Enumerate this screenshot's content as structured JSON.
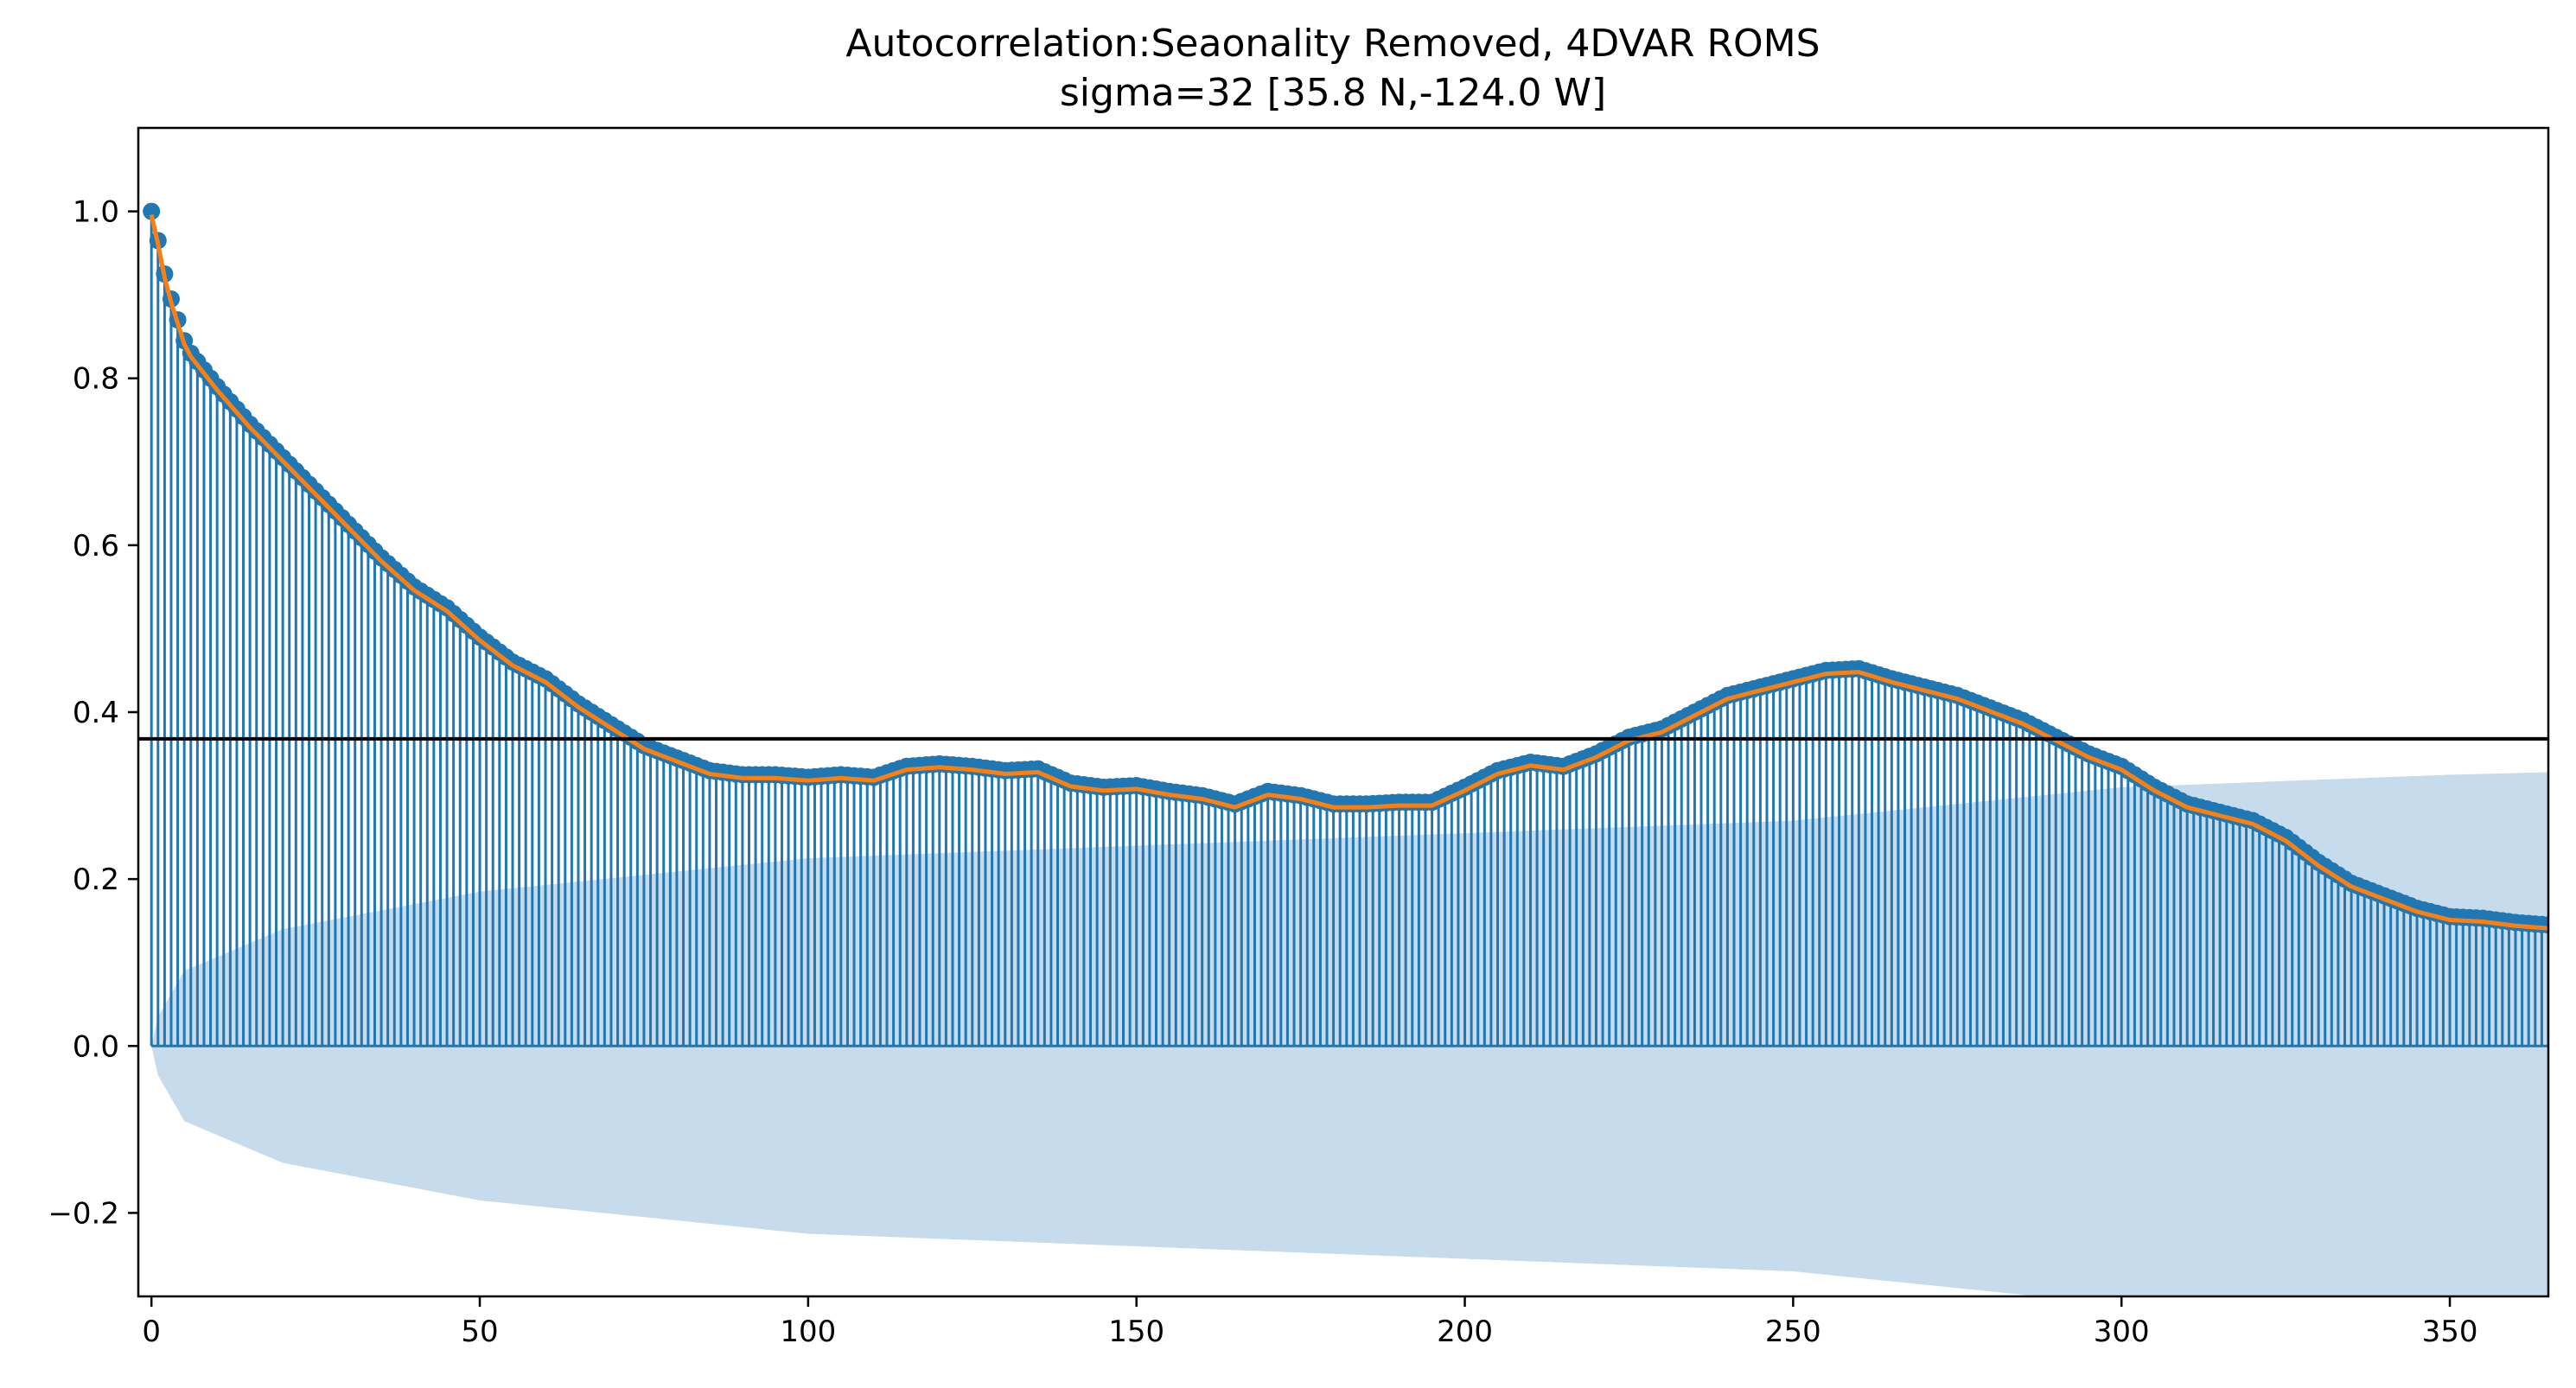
{
  "chart_data": {
    "type": "bar",
    "subtype": "acf-stem",
    "title": "Autocorrelation:Seaonality Removed, 4DVAR ROMS",
    "subtitle": "sigma=32 [35.8 N,-124.0 W]",
    "xlabel": "",
    "ylabel": "",
    "xlim": [
      -2,
      365
    ],
    "ylim": [
      -0.3,
      1.1
    ],
    "x_ticks": [
      0,
      50,
      100,
      150,
      200,
      250,
      300,
      350
    ],
    "x_tick_labels": [
      "0",
      "50",
      "100",
      "150",
      "200",
      "250",
      "300",
      "350"
    ],
    "y_ticks": [
      -0.2,
      0.0,
      0.2,
      0.4,
      0.6,
      0.8,
      1.0
    ],
    "y_tick_labels": [
      "−0.2",
      "0.0",
      "0.2",
      "0.4",
      "0.6",
      "0.8",
      "1.0"
    ],
    "grid": false,
    "legend": "none",
    "threshold_line": 0.368,
    "lags": {
      "start": 0,
      "end": 365,
      "step": 1
    },
    "acf_anchors": {
      "x": [
        0,
        1,
        2,
        3,
        4,
        5,
        6,
        8,
        10,
        15,
        20,
        25,
        30,
        35,
        40,
        45,
        50,
        55,
        60,
        65,
        70,
        75,
        80,
        85,
        90,
        95,
        100,
        105,
        110,
        115,
        120,
        125,
        130,
        135,
        140,
        145,
        150,
        155,
        160,
        165,
        170,
        175,
        180,
        185,
        190,
        195,
        200,
        205,
        210,
        215,
        220,
        225,
        230,
        235,
        240,
        245,
        250,
        255,
        260,
        265,
        270,
        275,
        280,
        285,
        290,
        295,
        300,
        305,
        310,
        315,
        320,
        325,
        330,
        335,
        340,
        345,
        350,
        355,
        360,
        365
      ],
      "y": [
        1.0,
        0.965,
        0.925,
        0.895,
        0.87,
        0.845,
        0.83,
        0.81,
        0.79,
        0.745,
        0.705,
        0.665,
        0.625,
        0.585,
        0.55,
        0.525,
        0.49,
        0.46,
        0.44,
        0.41,
        0.385,
        0.36,
        0.345,
        0.33,
        0.325,
        0.325,
        0.322,
        0.325,
        0.322,
        0.335,
        0.338,
        0.335,
        0.33,
        0.332,
        0.315,
        0.31,
        0.312,
        0.305,
        0.3,
        0.29,
        0.305,
        0.3,
        0.29,
        0.29,
        0.292,
        0.292,
        0.31,
        0.33,
        0.34,
        0.335,
        0.35,
        0.37,
        0.38,
        0.4,
        0.42,
        0.43,
        0.44,
        0.45,
        0.452,
        0.44,
        0.43,
        0.42,
        0.405,
        0.39,
        0.37,
        0.35,
        0.335,
        0.31,
        0.29,
        0.28,
        0.27,
        0.25,
        0.22,
        0.195,
        0.18,
        0.165,
        0.155,
        0.153,
        0.148,
        0.145
      ]
    },
    "confidence_upper_anchors": {
      "x": [
        0,
        1,
        5,
        20,
        50,
        100,
        150,
        200,
        250,
        300,
        350,
        365
      ],
      "y": [
        0.0,
        0.035,
        0.09,
        0.14,
        0.185,
        0.225,
        0.24,
        0.255,
        0.27,
        0.31,
        0.325,
        0.328
      ]
    },
    "confidence_lower_anchors": {
      "x": [
        0,
        1,
        5,
        20,
        50,
        100,
        150,
        200,
        250,
        300,
        350,
        365
      ],
      "y": [
        0.0,
        -0.035,
        -0.09,
        -0.14,
        -0.185,
        -0.225,
        -0.24,
        -0.255,
        -0.27,
        -0.31,
        -0.325,
        -0.328
      ]
    },
    "colors": {
      "stem": "#1f77b4",
      "marker": "#1f77b4",
      "fit_line": "#ff7f0e",
      "confidence_band": "#c6dbeb",
      "threshold": "#000000",
      "axis": "#000000"
    }
  }
}
